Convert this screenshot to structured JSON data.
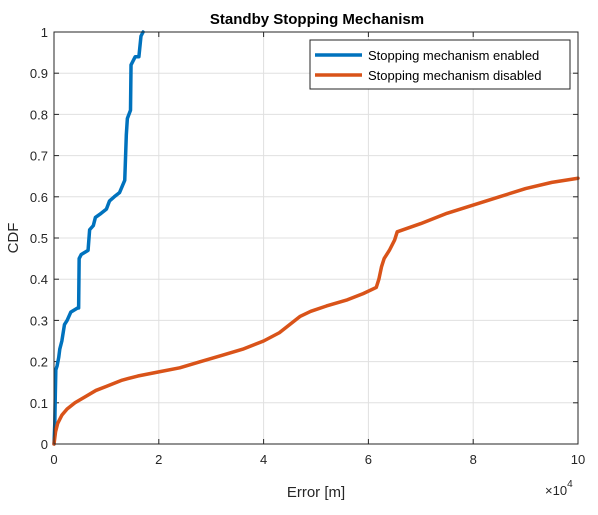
{
  "chart_data": {
    "type": "line",
    "title": "Standby Stopping Mechanism",
    "xlabel": "Error [m]",
    "ylabel": "CDF",
    "x_multiplier_base": "×10",
    "x_multiplier_exp": "4",
    "xlim": [
      0,
      100000
    ],
    "ylim": [
      0,
      1
    ],
    "x_ticks": [
      0,
      20000,
      40000,
      60000,
      80000,
      100000
    ],
    "x_tick_labels": [
      "0",
      "2",
      "4",
      "6",
      "8",
      "10"
    ],
    "y_ticks": [
      0,
      0.1,
      0.2,
      0.3,
      0.4,
      0.5,
      0.6,
      0.7,
      0.8,
      0.9,
      1
    ],
    "y_tick_labels": [
      "0",
      "0.1",
      "0.2",
      "0.3",
      "0.4",
      "0.5",
      "0.6",
      "0.7",
      "0.8",
      "0.9",
      "1"
    ],
    "grid": true,
    "legend_position": "top-right",
    "series": [
      {
        "name": "Stopping mechanism enabled",
        "color": "#0072BD",
        "points": [
          [
            0,
            0
          ],
          [
            150,
            0.05
          ],
          [
            250,
            0.12
          ],
          [
            350,
            0.18
          ],
          [
            600,
            0.19
          ],
          [
            900,
            0.21
          ],
          [
            1100,
            0.23
          ],
          [
            1500,
            0.25
          ],
          [
            2000,
            0.29
          ],
          [
            2500,
            0.3
          ],
          [
            3200,
            0.32
          ],
          [
            4500,
            0.33
          ],
          [
            4700,
            0.33
          ],
          [
            4800,
            0.45
          ],
          [
            5200,
            0.46
          ],
          [
            6500,
            0.47
          ],
          [
            6800,
            0.52
          ],
          [
            7500,
            0.53
          ],
          [
            7900,
            0.55
          ],
          [
            9000,
            0.56
          ],
          [
            10000,
            0.57
          ],
          [
            10600,
            0.59
          ],
          [
            11500,
            0.6
          ],
          [
            12500,
            0.61
          ],
          [
            13500,
            0.64
          ],
          [
            13800,
            0.75
          ],
          [
            14000,
            0.79
          ],
          [
            14600,
            0.81
          ],
          [
            14700,
            0.92
          ],
          [
            15500,
            0.94
          ],
          [
            16200,
            0.94
          ],
          [
            16600,
            0.99
          ],
          [
            17000,
            1.0
          ]
        ]
      },
      {
        "name": "Stopping mechanism disabled",
        "color": "#D95319",
        "points": [
          [
            0,
            0
          ],
          [
            300,
            0.03
          ],
          [
            700,
            0.05
          ],
          [
            1500,
            0.07
          ],
          [
            2500,
            0.085
          ],
          [
            4000,
            0.1
          ],
          [
            6000,
            0.115
          ],
          [
            8000,
            0.13
          ],
          [
            10000,
            0.14
          ],
          [
            13000,
            0.155
          ],
          [
            16000,
            0.165
          ],
          [
            20000,
            0.175
          ],
          [
            24000,
            0.185
          ],
          [
            28000,
            0.2
          ],
          [
            32000,
            0.215
          ],
          [
            36000,
            0.23
          ],
          [
            40000,
            0.25
          ],
          [
            43000,
            0.27
          ],
          [
            45000,
            0.29
          ],
          [
            47000,
            0.31
          ],
          [
            49000,
            0.322
          ],
          [
            52000,
            0.335
          ],
          [
            56000,
            0.35
          ],
          [
            59000,
            0.365
          ],
          [
            61500,
            0.38
          ],
          [
            62000,
            0.4
          ],
          [
            62500,
            0.43
          ],
          [
            63000,
            0.45
          ],
          [
            64000,
            0.47
          ],
          [
            65000,
            0.495
          ],
          [
            65500,
            0.515
          ],
          [
            70000,
            0.535
          ],
          [
            75000,
            0.56
          ],
          [
            80000,
            0.58
          ],
          [
            85000,
            0.6
          ],
          [
            90000,
            0.62
          ],
          [
            95000,
            0.635
          ],
          [
            100000,
            0.645
          ]
        ]
      }
    ]
  }
}
